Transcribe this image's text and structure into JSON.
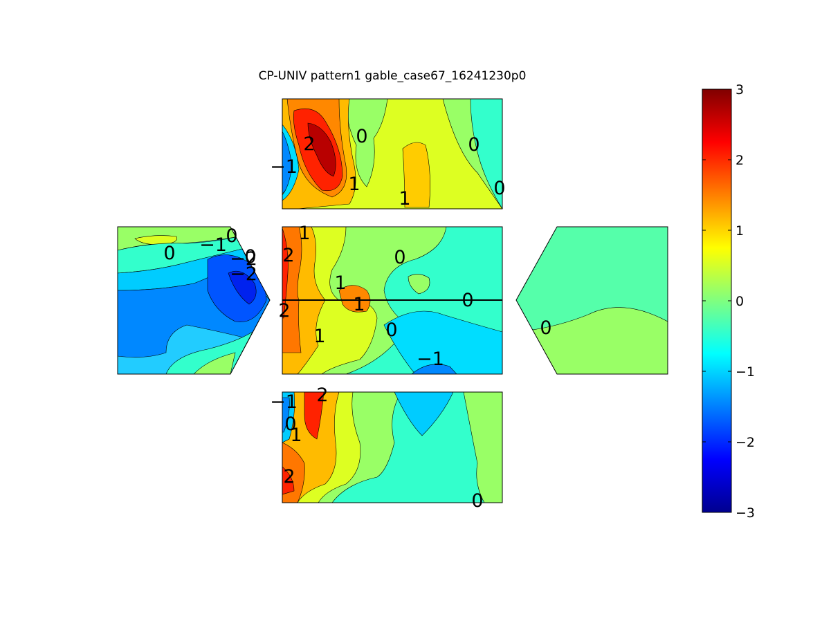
{
  "chart_data": {
    "type": "heatmap",
    "title": "CP-UNIV pattern1 gable_case67_16241230p0",
    "colormap": "jet",
    "colorbar": {
      "min": -3,
      "max": 3,
      "ticks": [
        "3",
        "2",
        "1",
        "0",
        "−1",
        "−2",
        "−3"
      ],
      "levels": 60,
      "placement": "right"
    },
    "panels": [
      {
        "name": "top-roof",
        "contour_labels": [
          "2",
          "0",
          "0",
          "−1",
          "1",
          "0",
          "1"
        ]
      },
      {
        "name": "left-gable",
        "contour_labels": [
          "0",
          "−1",
          "0",
          "−2",
          "−2",
          "0"
        ]
      },
      {
        "name": "center-wall",
        "contour_labels": [
          "1",
          "2",
          "0",
          "1",
          "1",
          "0",
          "2",
          "1",
          "0",
          "−1"
        ]
      },
      {
        "name": "right-gable",
        "contour_labels": [
          "0"
        ]
      },
      {
        "name": "bottom-roof",
        "contour_labels": [
          "−1",
          "2",
          "0",
          "1",
          "2",
          "0"
        ]
      }
    ]
  }
}
